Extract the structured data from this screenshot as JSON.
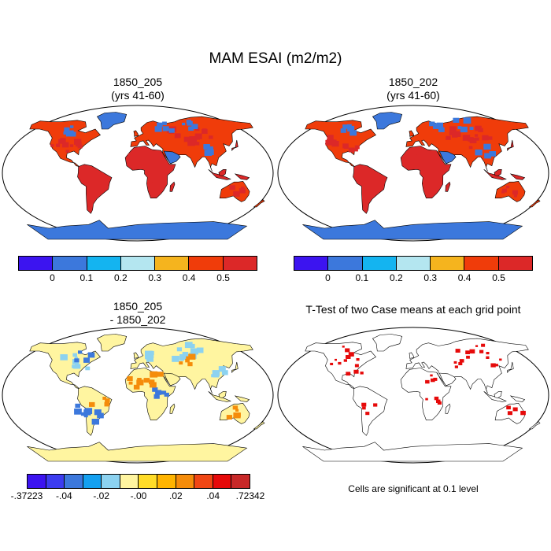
{
  "figure": {
    "title": "MAM ESAI (m2/m2)"
  },
  "panels": [
    {
      "title_line1": "1850_205",
      "title_line2": "(yrs 41-60)"
    },
    {
      "title_line1": "1850_202",
      "title_line2": "(yrs 41-60)"
    },
    {
      "title_line1": "1850_205",
      "title_line2": "- 1850_202"
    },
    {
      "title_line1": "T-Test of two Case means at each grid point",
      "title_line2": ""
    }
  ],
  "colorbar_main": {
    "colors": [
      "#3c14f0",
      "#3c78dc",
      "#14b4f0",
      "#b4e6f0",
      "#f5b41e",
      "#f03c0a",
      "#dc2828"
    ],
    "ticks": [
      "0",
      "0.1",
      "0.2",
      "0.3",
      "0.4",
      "0.5"
    ]
  },
  "colorbar_diff": {
    "colors": [
      "#3c14f0",
      "#3c3cf0",
      "#3c78dc",
      "#14a0f0",
      "#8cd2f0",
      "#fff5a0",
      "#ffdc28",
      "#ffb400",
      "#f58c0a",
      "#f04614",
      "#e60a0a",
      "#c82828"
    ],
    "ticks": [
      "-.37223",
      "-.04",
      "-.02",
      "-.00",
      ".02",
      ".04",
      ".72342"
    ]
  },
  "significance_note": "Cells are significant at 0.1 level",
  "map_colors": {
    "ocean": "#ffffff",
    "land_high": "#dc2828",
    "land_mid": "#f03c0a",
    "land_low": "#3c78dc",
    "diff_base": "#fff5a0",
    "significant": "#e60a0a"
  }
}
